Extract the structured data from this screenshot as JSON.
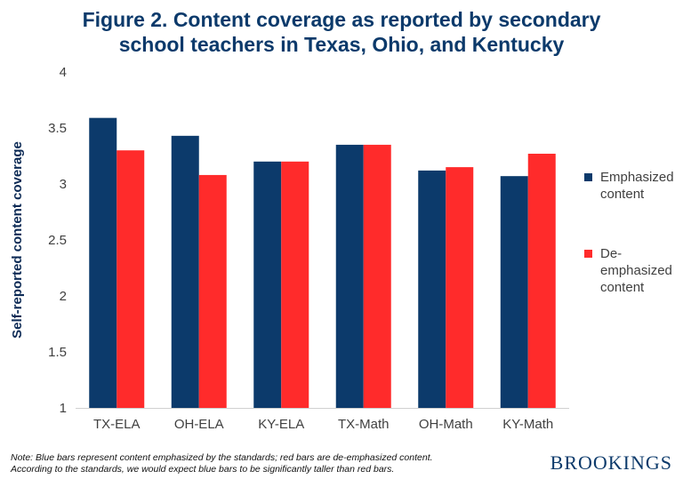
{
  "chart_data": {
    "type": "bar",
    "title": [
      "Figure 2. Content coverage as reported by secondary",
      "school teachers in Texas, Ohio, and Kentucky"
    ],
    "ylabel": "Self-reported content coverage",
    "xlabel": "",
    "categories": [
      "TX-ELA",
      "OH-ELA",
      "KY-ELA",
      "TX-Math",
      "OH-Math",
      "KY-Math"
    ],
    "ylim": [
      1,
      4
    ],
    "yticks": [
      "1",
      "1.5",
      "2",
      "2.5",
      "3",
      "3.5",
      "4"
    ],
    "grid": false,
    "legend_position": "right",
    "series": [
      {
        "name": "Emphasized content",
        "name_lines": [
          "Emphasized",
          "content"
        ],
        "color": "#0c3a6b",
        "values": [
          3.59,
          3.43,
          3.2,
          3.35,
          3.12,
          3.07
        ]
      },
      {
        "name": "De-emphasized content",
        "name_lines": [
          "De-",
          "emphasized",
          "content"
        ],
        "color": "#ff2b2b",
        "values": [
          3.3,
          3.08,
          3.2,
          3.35,
          3.15,
          3.27
        ]
      }
    ]
  },
  "note": [
    "Note: Blue bars represent content emphasized by the standards; red bars are de-emphasized content.",
    "According to the standards, we would expect blue bars to be significantly taller than red bars."
  ],
  "brand": "BROOKINGS"
}
